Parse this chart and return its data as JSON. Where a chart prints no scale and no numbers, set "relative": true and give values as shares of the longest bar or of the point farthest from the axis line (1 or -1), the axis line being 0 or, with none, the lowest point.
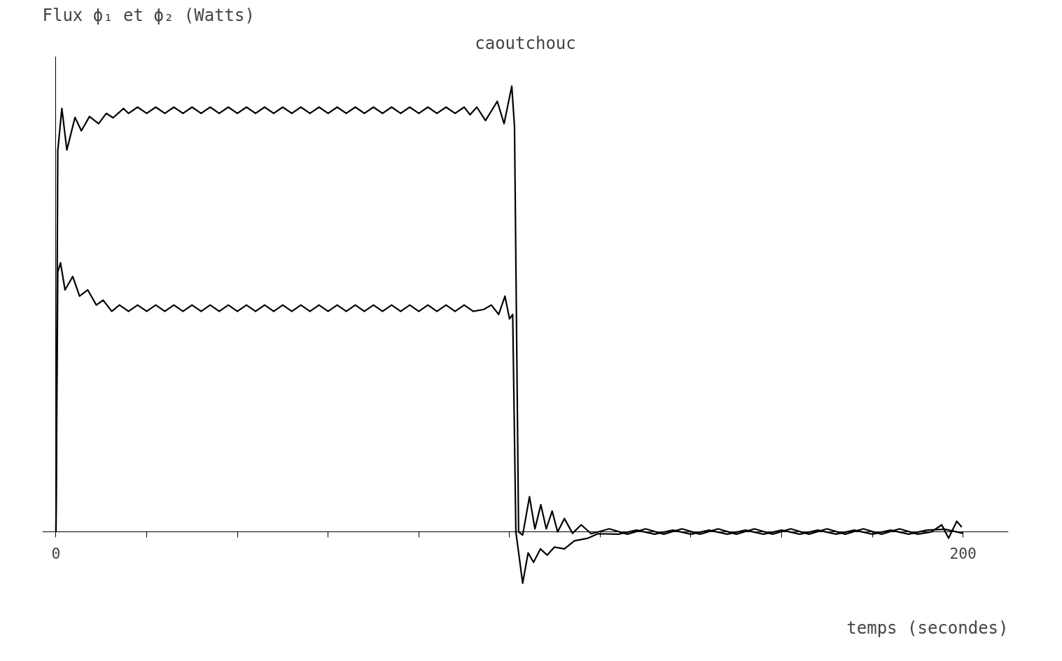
{
  "chart_data": {
    "type": "line",
    "title": "caoutchouc",
    "ylabel": "Flux ϕ₁ et ϕ₂ (Watts)",
    "xlabel": "temps (secondes)",
    "relative": true,
    "tick_labels": "x",
    "marker": "none",
    "line_style": "solid",
    "xlim": [
      -3,
      210
    ],
    "xticks": [
      0,
      {
        "value": 20,
        "label": null
      },
      {
        "value": 40,
        "label": null
      },
      {
        "value": 60,
        "label": null
      },
      {
        "value": 80,
        "label": null
      },
      {
        "value": 100,
        "label": null
      },
      {
        "value": 120,
        "label": null
      },
      {
        "value": 140,
        "label": null
      },
      {
        "value": 160,
        "label": null
      },
      {
        "value": 180,
        "label": null
      },
      200
    ],
    "series": [
      {
        "color": "#000000",
        "x": [
          0,
          0.4,
          1.3,
          2.4,
          4.2,
          5.6,
          7.4,
          9.4,
          11.1,
          12.6,
          14.9,
          16,
          18,
          20,
          22,
          24,
          26,
          28,
          30,
          32,
          34,
          36,
          38,
          40,
          42,
          44,
          46,
          48,
          50,
          52,
          54,
          56,
          58,
          60,
          62,
          64,
          66,
          68,
          70,
          72,
          74,
          76,
          78,
          80,
          82,
          84,
          86,
          88,
          90,
          91.3,
          92.8,
          94.7,
          97.3,
          98.8,
          100.5,
          101.1,
          102,
          102.9,
          104.4,
          105.6,
          106.9,
          108.1,
          109.4,
          110.6,
          112.1,
          113.9,
          115.8,
          118,
          122,
          126,
          130,
          134,
          138,
          142,
          146,
          150,
          154,
          158,
          162,
          166,
          170,
          174,
          178,
          182,
          186,
          190,
          193,
          195.3,
          196.8,
          198.6,
          199.7
        ],
        "values": [
          0,
          0.855,
          0.95,
          0.857,
          0.93,
          0.9,
          0.932,
          0.916,
          0.939,
          0.929,
          0.95,
          0.939,
          0.953,
          0.939,
          0.953,
          0.939,
          0.953,
          0.939,
          0.953,
          0.939,
          0.953,
          0.939,
          0.953,
          0.939,
          0.953,
          0.939,
          0.953,
          0.939,
          0.953,
          0.939,
          0.953,
          0.939,
          0.953,
          0.939,
          0.953,
          0.939,
          0.953,
          0.939,
          0.953,
          0.939,
          0.953,
          0.939,
          0.953,
          0.939,
          0.953,
          0.939,
          0.953,
          0.939,
          0.953,
          0.936,
          0.953,
          0.923,
          0.966,
          0.916,
          1.0,
          0.909,
          0,
          -0.007,
          0.079,
          0.007,
          0.061,
          0.007,
          0.047,
          0,
          0.03,
          -0.003,
          0.016,
          -0.004,
          0.007,
          -0.005,
          0.007,
          -0.005,
          0.007,
          -0.005,
          0.007,
          -0.005,
          0.007,
          -0.005,
          0.007,
          -0.005,
          0.007,
          -0.005,
          0.007,
          -0.005,
          0.007,
          -0.005,
          0,
          0.016,
          -0.014,
          0.024,
          0.011
        ]
      },
      {
        "color": "#000000",
        "x": [
          0,
          0.4,
          1,
          2,
          3.7,
          5.2,
          7,
          8.9,
          10.4,
          12.3,
          14,
          16,
          18,
          20,
          22,
          24,
          26,
          28,
          30,
          32,
          34,
          36,
          38,
          40,
          42,
          44,
          46,
          48,
          50,
          52,
          54,
          56,
          58,
          60,
          62,
          64,
          66,
          68,
          70,
          72,
          74,
          76,
          78,
          80,
          82,
          84,
          86,
          88,
          90,
          92,
          94.3,
          96,
          97.6,
          99,
          100,
          100.7,
          101.4,
          102.9,
          104.1,
          105.3,
          106.8,
          108.3,
          109.9,
          112.1,
          114.3,
          117.3,
          119.5,
          124,
          128,
          132,
          136,
          140,
          144,
          148,
          152,
          156,
          160,
          164,
          168,
          172,
          176,
          180,
          184,
          188,
          192,
          196,
          200
        ],
        "values": [
          0,
          0.583,
          0.604,
          0.543,
          0.573,
          0.529,
          0.543,
          0.509,
          0.52,
          0.495,
          0.509,
          0.495,
          0.509,
          0.495,
          0.509,
          0.495,
          0.509,
          0.495,
          0.509,
          0.495,
          0.509,
          0.495,
          0.509,
          0.495,
          0.509,
          0.495,
          0.509,
          0.495,
          0.509,
          0.495,
          0.509,
          0.495,
          0.509,
          0.495,
          0.509,
          0.495,
          0.509,
          0.495,
          0.509,
          0.495,
          0.509,
          0.495,
          0.509,
          0.495,
          0.509,
          0.495,
          0.509,
          0.495,
          0.509,
          0.495,
          0.499,
          0.509,
          0.488,
          0.529,
          0.478,
          0.488,
          0,
          -0.115,
          -0.047,
          -0.068,
          -0.038,
          -0.052,
          -0.034,
          -0.038,
          -0.02,
          -0.014,
          -0.004,
          -0.005,
          0.004,
          -0.005,
          0.004,
          -0.005,
          0.004,
          -0.005,
          0.004,
          -0.005,
          0.004,
          -0.005,
          0.004,
          -0.005,
          0.004,
          -0.005,
          0.004,
          -0.005,
          0.004,
          0.006,
          -0.003
        ]
      }
    ]
  }
}
